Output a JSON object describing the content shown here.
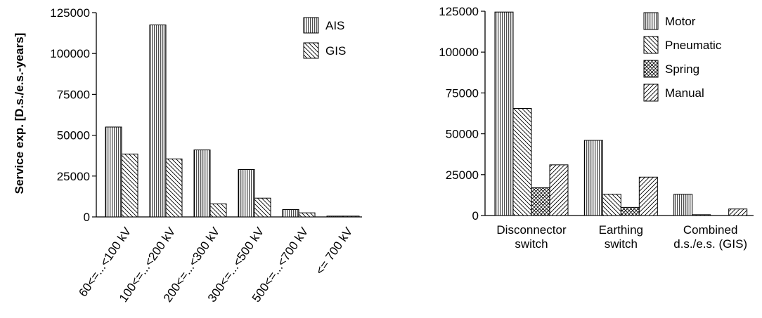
{
  "chart_data": [
    {
      "type": "bar",
      "ylabel": "Service exp. [D.s./e.s.-years]",
      "ylim": [
        0,
        125000
      ],
      "yticks": [
        0,
        25000,
        50000,
        75000,
        100000,
        125000
      ],
      "grid": false,
      "legend_position": "top-right",
      "categories": [
        "60<=...<100 kV",
        "100<=...<200 kV",
        "200<=...<300 kV",
        "300<=...<500 kV",
        "500<=...<700 kV",
        "<= 700 kV"
      ],
      "series": [
        {
          "name": "AIS",
          "pattern": "vertical",
          "values": [
            55000,
            117500,
            41000,
            29000,
            4500,
            500
          ]
        },
        {
          "name": "GIS",
          "pattern": "diagonal-back",
          "values": [
            38500,
            35500,
            8000,
            11500,
            2500,
            500
          ]
        }
      ]
    },
    {
      "type": "bar",
      "ylim": [
        0,
        125000
      ],
      "yticks": [
        0,
        25000,
        50000,
        75000,
        100000,
        125000
      ],
      "grid": false,
      "legend_position": "top-right",
      "categories": [
        [
          "Disconnector",
          "switch"
        ],
        [
          "Earthing",
          "switch"
        ],
        [
          "Combined",
          "d.s./e.s. (GIS)"
        ]
      ],
      "series": [
        {
          "name": "Motor",
          "pattern": "vertical",
          "values": [
            124500,
            46000,
            13000
          ]
        },
        {
          "name": "Pneumatic",
          "pattern": "diagonal-back",
          "values": [
            65500,
            13000,
            500
          ]
        },
        {
          "name": "Spring",
          "pattern": "crosshatch",
          "values": [
            17000,
            5000,
            0
          ]
        },
        {
          "name": "Manual",
          "pattern": "diagonal-forward",
          "values": [
            31000,
            23500,
            4000
          ]
        }
      ]
    }
  ]
}
